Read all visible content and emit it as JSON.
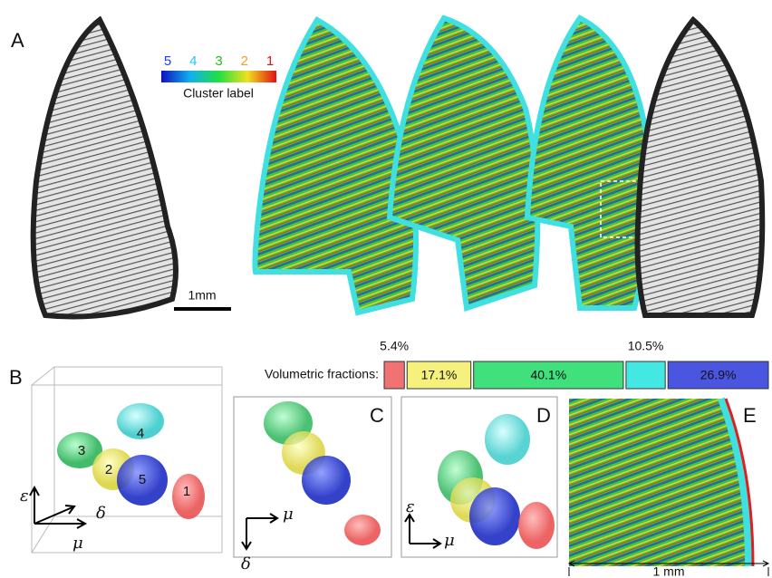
{
  "panels": {
    "a": "A",
    "b": "B",
    "c": "C",
    "d": "D",
    "e": "E"
  },
  "colorbar": {
    "labels": [
      "5",
      "4",
      "3",
      "2",
      "1"
    ],
    "label_colors": [
      "#1a3cff",
      "#20c8f0",
      "#20c020",
      "#f0a020",
      "#e81010"
    ],
    "title": "Cluster label"
  },
  "scale_bar": "1mm",
  "fractions": {
    "label": "Volumetric fractions:",
    "items": [
      {
        "value": 5.4,
        "label": "5.4%",
        "color": "#f07272"
      },
      {
        "value": 17.1,
        "label": "17.1%",
        "color": "#f6f07c"
      },
      {
        "value": 40.1,
        "label": "40.1%",
        "color": "#40e07c"
      },
      {
        "value": 10.5,
        "label": "10.5%",
        "color": "#44e8e2"
      },
      {
        "value": 26.9,
        "label": "26.9%",
        "color": "#4a56e0"
      }
    ]
  },
  "cluster_markers": [
    "3",
    "4",
    "2",
    "5",
    "1"
  ],
  "axes": {
    "epsilon": "ε",
    "delta": "δ",
    "mu": "μ"
  },
  "panel_e_scale": "1 mm"
}
